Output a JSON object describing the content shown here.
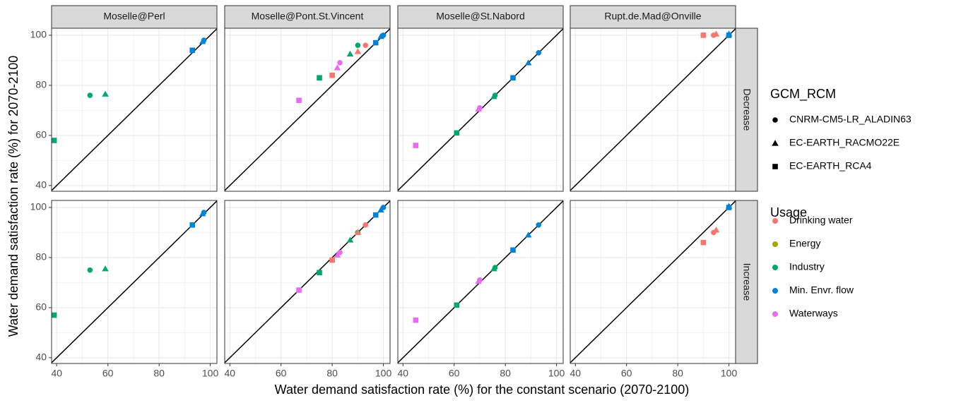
{
  "chart_data": {
    "type": "scatter",
    "x_label": "Water demand satisfaction rate (%) for the constant scenario (2070-2100)",
    "y_label": "Water demand satisfaction rate (%) for 2070-2100",
    "facet_columns": [
      "Moselle@Perl",
      "Moselle@Pont.St.Vincent",
      "Moselle@St.Nabord",
      "Rupt.de.Mad@Onville"
    ],
    "facet_rows": [
      "Decrease",
      "Increase"
    ],
    "xlim": [
      38,
      102.6
    ],
    "ylim": [
      37.7,
      102.8
    ],
    "xticks": [
      40,
      60,
      80,
      100
    ],
    "yticks": [
      40,
      60,
      80,
      100
    ],
    "minor_grid": [
      50,
      70,
      90
    ],
    "grid": true,
    "shape_legend": {
      "title": "GCM_RCM",
      "entries": [
        {
          "name": "CNRM-CM5-LR_ALADIN63",
          "shape": "circle"
        },
        {
          "name": "EC-EARTH_RACMO22E",
          "shape": "triangle"
        },
        {
          "name": "EC-EARTH_RCA4",
          "shape": "square"
        }
      ]
    },
    "color_legend": {
      "title": "Usage",
      "entries": [
        {
          "name": "Drinking water",
          "color": "#F8766D"
        },
        {
          "name": "Energy",
          "color": "#A3A500"
        },
        {
          "name": "Industry",
          "color": "#00A86B"
        },
        {
          "name": "Min. Envr. flow",
          "color": "#0082D6"
        },
        {
          "name": "Waterways",
          "color": "#E76BF3"
        }
      ]
    },
    "panels": [
      [
        [
          {
            "x": 93,
            "y": 94,
            "usage": "Min. Envr. flow",
            "model": "EC-EARTH_RCA4"
          },
          {
            "x": 97,
            "y": 97.5,
            "usage": "Min. Envr. flow",
            "model": "EC-EARTH_RACMO22E"
          },
          {
            "x": 97.5,
            "y": 98,
            "usage": "Min. Envr. flow",
            "model": "CNRM-CM5-LR_ALADIN63"
          },
          {
            "x": 53,
            "y": 76,
            "usage": "Industry",
            "model": "CNRM-CM5-LR_ALADIN63"
          },
          {
            "x": 59,
            "y": 76.5,
            "usage": "Industry",
            "model": "EC-EARTH_RACMO22E"
          },
          {
            "x": 39,
            "y": 58,
            "usage": "Industry",
            "model": "EC-EARTH_RCA4"
          }
        ],
        [
          {
            "x": 97,
            "y": 97,
            "usage": "Min. Envr. flow",
            "model": "EC-EARTH_RCA4"
          },
          {
            "x": 99,
            "y": 99.5,
            "usage": "Min. Envr. flow",
            "model": "EC-EARTH_RACMO22E"
          },
          {
            "x": 100,
            "y": 100,
            "usage": "Min. Envr. flow",
            "model": "CNRM-CM5-LR_ALADIN63"
          },
          {
            "x": 90,
            "y": 96,
            "usage": "Industry",
            "model": "CNRM-CM5-LR_ALADIN63"
          },
          {
            "x": 87,
            "y": 92.5,
            "usage": "Industry",
            "model": "EC-EARTH_RACMO22E"
          },
          {
            "x": 75,
            "y": 83,
            "usage": "Industry",
            "model": "EC-EARTH_RCA4"
          },
          {
            "x": 93,
            "y": 96,
            "usage": "Drinking water",
            "model": "CNRM-CM5-LR_ALADIN63"
          },
          {
            "x": 90,
            "y": 93.5,
            "usage": "Drinking water",
            "model": "EC-EARTH_RACMO22E"
          },
          {
            "x": 80,
            "y": 84,
            "usage": "Drinking water",
            "model": "EC-EARTH_RCA4"
          },
          {
            "x": 83,
            "y": 89,
            "usage": "Waterways",
            "model": "CNRM-CM5-LR_ALADIN63"
          },
          {
            "x": 82,
            "y": 87,
            "usage": "Waterways",
            "model": "EC-EARTH_RACMO22E"
          },
          {
            "x": 67,
            "y": 74,
            "usage": "Waterways",
            "model": "EC-EARTH_RCA4"
          }
        ],
        [
          {
            "x": 93,
            "y": 93,
            "usage": "Min. Envr. flow",
            "model": "CNRM-CM5-LR_ALADIN63"
          },
          {
            "x": 89,
            "y": 89,
            "usage": "Min. Envr. flow",
            "model": "EC-EARTH_RACMO22E"
          },
          {
            "x": 83,
            "y": 83,
            "usage": "Min. Envr. flow",
            "model": "EC-EARTH_RCA4"
          },
          {
            "x": 76,
            "y": 76,
            "usage": "Industry",
            "model": "CNRM-CM5-LR_ALADIN63"
          },
          {
            "x": 75.5,
            "y": 75.5,
            "usage": "Industry",
            "model": "EC-EARTH_RACMO22E"
          },
          {
            "x": 61,
            "y": 61,
            "usage": "Industry",
            "model": "EC-EARTH_RCA4"
          },
          {
            "x": 70,
            "y": 71,
            "usage": "Waterways",
            "model": "CNRM-CM5-LR_ALADIN63"
          },
          {
            "x": 69.5,
            "y": 70.5,
            "usage": "Waterways",
            "model": "EC-EARTH_RACMO22E"
          },
          {
            "x": 45,
            "y": 56,
            "usage": "Waterways",
            "model": "EC-EARTH_RCA4"
          }
        ],
        [
          {
            "x": 90,
            "y": 100,
            "usage": "Drinking water",
            "model": "EC-EARTH_RCA4"
          },
          {
            "x": 94,
            "y": 100,
            "usage": "Drinking water",
            "model": "CNRM-CM5-LR_ALADIN63"
          },
          {
            "x": 95,
            "y": 100.5,
            "usage": "Drinking water",
            "model": "EC-EARTH_RACMO22E"
          },
          {
            "x": 100,
            "y": 100,
            "usage": "Min. Envr. flow",
            "model": "EC-EARTH_RCA4"
          },
          {
            "x": 100,
            "y": 100.5,
            "usage": "Min. Envr. flow",
            "model": "EC-EARTH_RACMO22E"
          },
          {
            "x": 100,
            "y": 100,
            "usage": "Min. Envr. flow",
            "model": "CNRM-CM5-LR_ALADIN63"
          }
        ]
      ],
      [
        [
          {
            "x": 93,
            "y": 93,
            "usage": "Min. Envr. flow",
            "model": "EC-EARTH_RCA4"
          },
          {
            "x": 97,
            "y": 97.5,
            "usage": "Min. Envr. flow",
            "model": "EC-EARTH_RACMO22E"
          },
          {
            "x": 97.5,
            "y": 98,
            "usage": "Min. Envr. flow",
            "model": "CNRM-CM5-LR_ALADIN63"
          },
          {
            "x": 53,
            "y": 75,
            "usage": "Industry",
            "model": "CNRM-CM5-LR_ALADIN63"
          },
          {
            "x": 59,
            "y": 75.5,
            "usage": "Industry",
            "model": "EC-EARTH_RACMO22E"
          },
          {
            "x": 39,
            "y": 57,
            "usage": "Industry",
            "model": "EC-EARTH_RCA4"
          }
        ],
        [
          {
            "x": 97,
            "y": 97,
            "usage": "Min. Envr. flow",
            "model": "EC-EARTH_RCA4"
          },
          {
            "x": 99,
            "y": 99,
            "usage": "Min. Envr. flow",
            "model": "EC-EARTH_RACMO22E"
          },
          {
            "x": 100,
            "y": 100,
            "usage": "Min. Envr. flow",
            "model": "CNRM-CM5-LR_ALADIN63"
          },
          {
            "x": 90,
            "y": 90,
            "usage": "Industry",
            "model": "CNRM-CM5-LR_ALADIN63"
          },
          {
            "x": 87,
            "y": 87,
            "usage": "Industry",
            "model": "EC-EARTH_RACMO22E"
          },
          {
            "x": 75,
            "y": 74,
            "usage": "Industry",
            "model": "EC-EARTH_RCA4"
          },
          {
            "x": 93,
            "y": 93,
            "usage": "Drinking water",
            "model": "CNRM-CM5-LR_ALADIN63"
          },
          {
            "x": 90,
            "y": 90,
            "usage": "Drinking water",
            "model": "EC-EARTH_RACMO22E"
          },
          {
            "x": 80,
            "y": 79,
            "usage": "Drinking water",
            "model": "EC-EARTH_RCA4"
          },
          {
            "x": 83,
            "y": 82,
            "usage": "Waterways",
            "model": "CNRM-CM5-LR_ALADIN63"
          },
          {
            "x": 82,
            "y": 81,
            "usage": "Waterways",
            "model": "EC-EARTH_RACMO22E"
          },
          {
            "x": 67,
            "y": 67,
            "usage": "Waterways",
            "model": "EC-EARTH_RCA4"
          }
        ],
        [
          {
            "x": 93,
            "y": 93,
            "usage": "Min. Envr. flow",
            "model": "CNRM-CM5-LR_ALADIN63"
          },
          {
            "x": 89,
            "y": 89,
            "usage": "Min. Envr. flow",
            "model": "EC-EARTH_RACMO22E"
          },
          {
            "x": 83,
            "y": 83,
            "usage": "Min. Envr. flow",
            "model": "EC-EARTH_RCA4"
          },
          {
            "x": 76,
            "y": 76,
            "usage": "Industry",
            "model": "CNRM-CM5-LR_ALADIN63"
          },
          {
            "x": 75.5,
            "y": 75.5,
            "usage": "Industry",
            "model": "EC-EARTH_RACMO22E"
          },
          {
            "x": 61,
            "y": 61,
            "usage": "Industry",
            "model": "EC-EARTH_RCA4"
          },
          {
            "x": 70,
            "y": 71,
            "usage": "Waterways",
            "model": "CNRM-CM5-LR_ALADIN63"
          },
          {
            "x": 69.5,
            "y": 70.5,
            "usage": "Waterways",
            "model": "EC-EARTH_RACMO22E"
          },
          {
            "x": 45,
            "y": 55,
            "usage": "Waterways",
            "model": "EC-EARTH_RCA4"
          }
        ],
        [
          {
            "x": 90,
            "y": 86,
            "usage": "Drinking water",
            "model": "EC-EARTH_RCA4"
          },
          {
            "x": 94,
            "y": 90,
            "usage": "Drinking water",
            "model": "CNRM-CM5-LR_ALADIN63"
          },
          {
            "x": 95,
            "y": 91,
            "usage": "Drinking water",
            "model": "EC-EARTH_RACMO22E"
          },
          {
            "x": 100,
            "y": 100,
            "usage": "Min. Envr. flow",
            "model": "EC-EARTH_RCA4"
          },
          {
            "x": 100,
            "y": 100.5,
            "usage": "Min. Envr. flow",
            "model": "EC-EARTH_RACMO22E"
          },
          {
            "x": 100,
            "y": 100,
            "usage": "Min. Envr. flow",
            "model": "CNRM-CM5-LR_ALADIN63"
          }
        ]
      ]
    ]
  }
}
